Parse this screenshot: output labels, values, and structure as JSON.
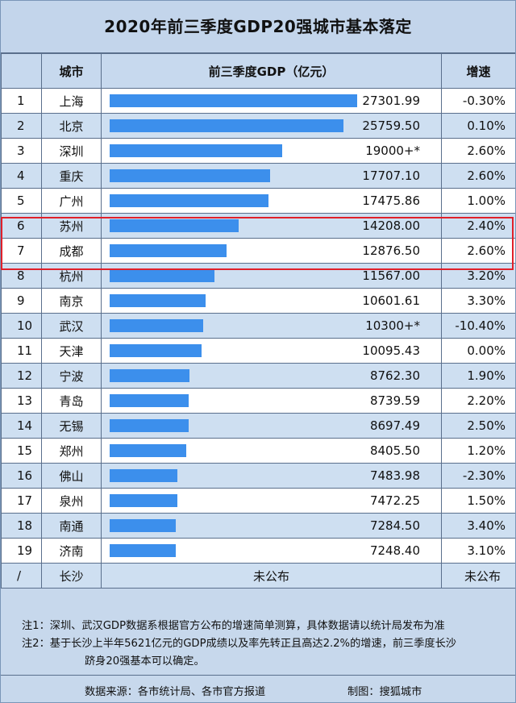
{
  "title": "2020年前三季度GDP20强城市基本落定",
  "columns": {
    "city": "城市",
    "gdp": "前三季度GDP（亿元）",
    "growth": "增速"
  },
  "chart_data": {
    "type": "bar",
    "ylabel": "前三季度GDP（亿元）",
    "rows": [
      {
        "rank": "1",
        "city": "上海",
        "value": 27301.99,
        "label": "27301.99",
        "growth": "-0.30%"
      },
      {
        "rank": "2",
        "city": "北京",
        "value": 25759.5,
        "label": "25759.50",
        "growth": "0.10%"
      },
      {
        "rank": "3",
        "city": "深圳",
        "value": 19000,
        "label": "19000+*",
        "growth": "2.60%"
      },
      {
        "rank": "4",
        "city": "重庆",
        "value": 17707.1,
        "label": "17707.10",
        "growth": "2.60%"
      },
      {
        "rank": "5",
        "city": "广州",
        "value": 17475.86,
        "label": "17475.86",
        "growth": "1.00%"
      },
      {
        "rank": "6",
        "city": "苏州",
        "value": 14208.0,
        "label": "14208.00",
        "growth": "2.40%"
      },
      {
        "rank": "7",
        "city": "成都",
        "value": 12876.5,
        "label": "12876.50",
        "growth": "2.60%"
      },
      {
        "rank": "8",
        "city": "杭州",
        "value": 11567.0,
        "label": "11567.00",
        "growth": "3.20%"
      },
      {
        "rank": "9",
        "city": "南京",
        "value": 10601.61,
        "label": "10601.61",
        "growth": "3.30%"
      },
      {
        "rank": "10",
        "city": "武汉",
        "value": 10300,
        "label": "10300+*",
        "growth": "-10.40%"
      },
      {
        "rank": "11",
        "city": "天津",
        "value": 10095.43,
        "label": "10095.43",
        "growth": "0.00%"
      },
      {
        "rank": "12",
        "city": "宁波",
        "value": 8762.3,
        "label": "8762.30",
        "growth": "1.90%"
      },
      {
        "rank": "13",
        "city": "青岛",
        "value": 8739.59,
        "label": "8739.59",
        "growth": "2.20%"
      },
      {
        "rank": "14",
        "city": "无锡",
        "value": 8697.49,
        "label": "8697.49",
        "growth": "2.50%"
      },
      {
        "rank": "15",
        "city": "郑州",
        "value": 8405.5,
        "label": "8405.50",
        "growth": "1.20%"
      },
      {
        "rank": "16",
        "city": "佛山",
        "value": 7483.98,
        "label": "7483.98",
        "growth": "-2.30%"
      },
      {
        "rank": "17",
        "city": "泉州",
        "value": 7472.25,
        "label": "7472.25",
        "growth": "1.50%"
      },
      {
        "rank": "18",
        "city": "南通",
        "value": 7284.5,
        "label": "7284.50",
        "growth": "3.40%"
      },
      {
        "rank": "19",
        "city": "济南",
        "value": 7248.4,
        "label": "7248.40",
        "growth": "3.10%"
      }
    ],
    "unranked": {
      "rank": "/",
      "city": "长沙",
      "gdp": "未公布",
      "growth": "未公布"
    },
    "highlighted_ranks": [
      "6",
      "7"
    ]
  },
  "colors": {
    "bar": "#3c8fec",
    "highlight": "#e0202a",
    "header": "#c7d9ee",
    "stripe": "#cedff1"
  },
  "notes": {
    "line1": "注1：深圳、武汉GDP数据系根据官方公布的增速简单测算，具体数据请以统计局发布为准",
    "line2": "注2：基于长沙上半年5621亿元的GDP成绩以及率先转正且高达2.2%的增速，前三季度长沙",
    "line3": "跻身20强基本可以确定。"
  },
  "footer": {
    "source": "数据来源：各市统计局、各市官方报道",
    "credit": "制图：搜狐城市"
  }
}
